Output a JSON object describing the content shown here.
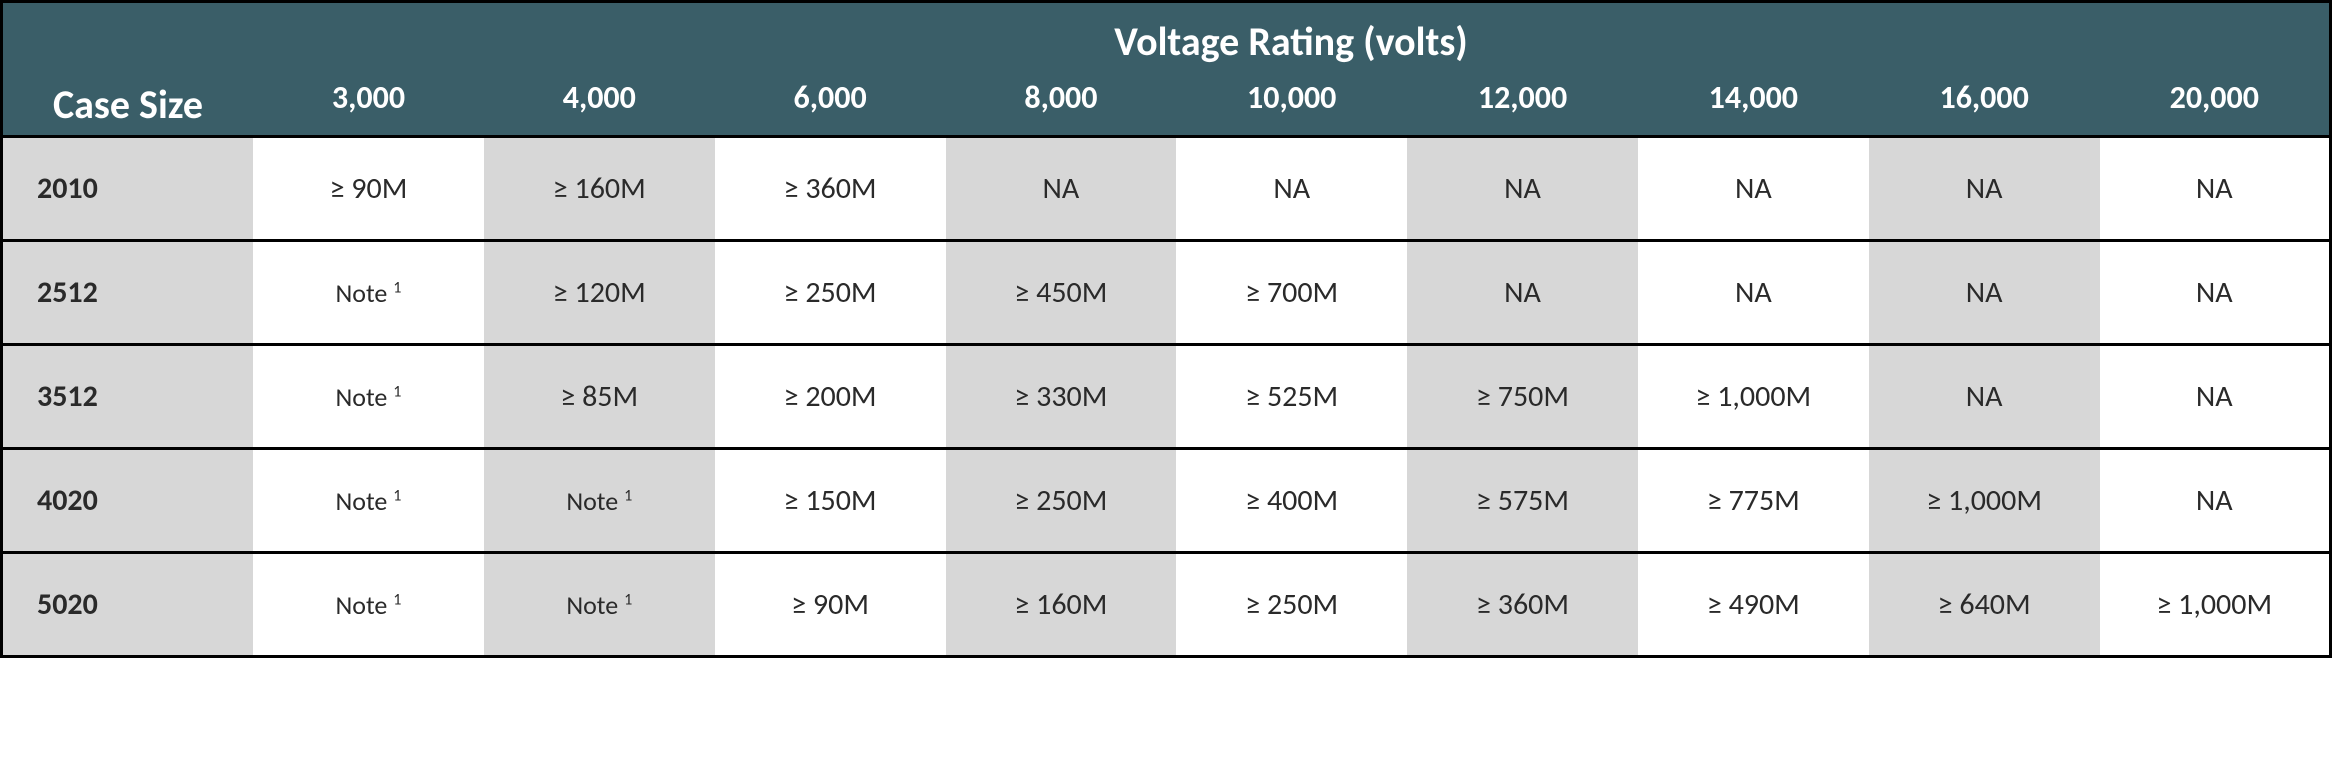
{
  "table": {
    "type": "table",
    "colors": {
      "header_bg": "#3a5e68",
      "header_text": "#ffffff",
      "body_text": "#2a2a2a",
      "shade_bg": "#d7d7d7",
      "plain_bg": "#ffffff",
      "border": "#000000"
    },
    "fonts": {
      "title_pt": 40,
      "col_header_pt": 32,
      "body_pt": 30,
      "note_pt": 26,
      "family": "Calibri"
    },
    "title": "Voltage Rating (volts)",
    "row_header_label": "Case Size",
    "columns": [
      "3,000",
      "4,000",
      "6,000",
      "8,000",
      "10,000",
      "12,000",
      "14,000",
      "16,000",
      "20,000"
    ],
    "rows": [
      {
        "case_size": "2010",
        "cells": [
          {
            "text": "≥ 90M",
            "note": false
          },
          {
            "text": "≥ 160M",
            "note": false
          },
          {
            "text": "≥ 360M",
            "note": false
          },
          {
            "text": "NA",
            "note": false
          },
          {
            "text": "NA",
            "note": false
          },
          {
            "text": "NA",
            "note": false
          },
          {
            "text": "NA",
            "note": false
          },
          {
            "text": "NA",
            "note": false
          },
          {
            "text": "NA",
            "note": false
          }
        ]
      },
      {
        "case_size": "2512",
        "cells": [
          {
            "text": "Note ",
            "note": true,
            "sup": "1"
          },
          {
            "text": "≥ 120M",
            "note": false
          },
          {
            "text": "≥ 250M",
            "note": false
          },
          {
            "text": "≥ 450M",
            "note": false
          },
          {
            "text": "≥ 700M",
            "note": false
          },
          {
            "text": "NA",
            "note": false
          },
          {
            "text": "NA",
            "note": false
          },
          {
            "text": "NA",
            "note": false
          },
          {
            "text": "NA",
            "note": false
          }
        ]
      },
      {
        "case_size": "3512",
        "cells": [
          {
            "text": "Note ",
            "note": true,
            "sup": "1"
          },
          {
            "text": "≥ 85M",
            "note": false
          },
          {
            "text": "≥ 200M",
            "note": false
          },
          {
            "text": "≥ 330M",
            "note": false
          },
          {
            "text": "≥ 525M",
            "note": false
          },
          {
            "text": "≥ 750M",
            "note": false
          },
          {
            "text": "≥ 1,000M",
            "note": false
          },
          {
            "text": "NA",
            "note": false
          },
          {
            "text": "NA",
            "note": false
          }
        ]
      },
      {
        "case_size": "4020",
        "cells": [
          {
            "text": "Note ",
            "note": true,
            "sup": "1"
          },
          {
            "text": "Note ",
            "note": true,
            "sup": "1"
          },
          {
            "text": "≥ 150M",
            "note": false
          },
          {
            "text": "≥ 250M",
            "note": false
          },
          {
            "text": "≥ 400M",
            "note": false
          },
          {
            "text": "≥ 575M",
            "note": false
          },
          {
            "text": "≥ 775M",
            "note": false
          },
          {
            "text": "≥ 1,000M",
            "note": false
          },
          {
            "text": "NA",
            "note": false
          }
        ]
      },
      {
        "case_size": "5020",
        "cells": [
          {
            "text": "Note ",
            "note": true,
            "sup": "1"
          },
          {
            "text": "Note ",
            "note": true,
            "sup": "1"
          },
          {
            "text": "≥ 90M",
            "note": false
          },
          {
            "text": "≥ 160M",
            "note": false
          },
          {
            "text": "≥ 250M",
            "note": false
          },
          {
            "text": "≥ 360M",
            "note": false
          },
          {
            "text": "≥ 490M",
            "note": false
          },
          {
            "text": "≥ 640M",
            "note": false
          },
          {
            "text": "≥ 1,000M",
            "note": false
          }
        ]
      }
    ]
  }
}
